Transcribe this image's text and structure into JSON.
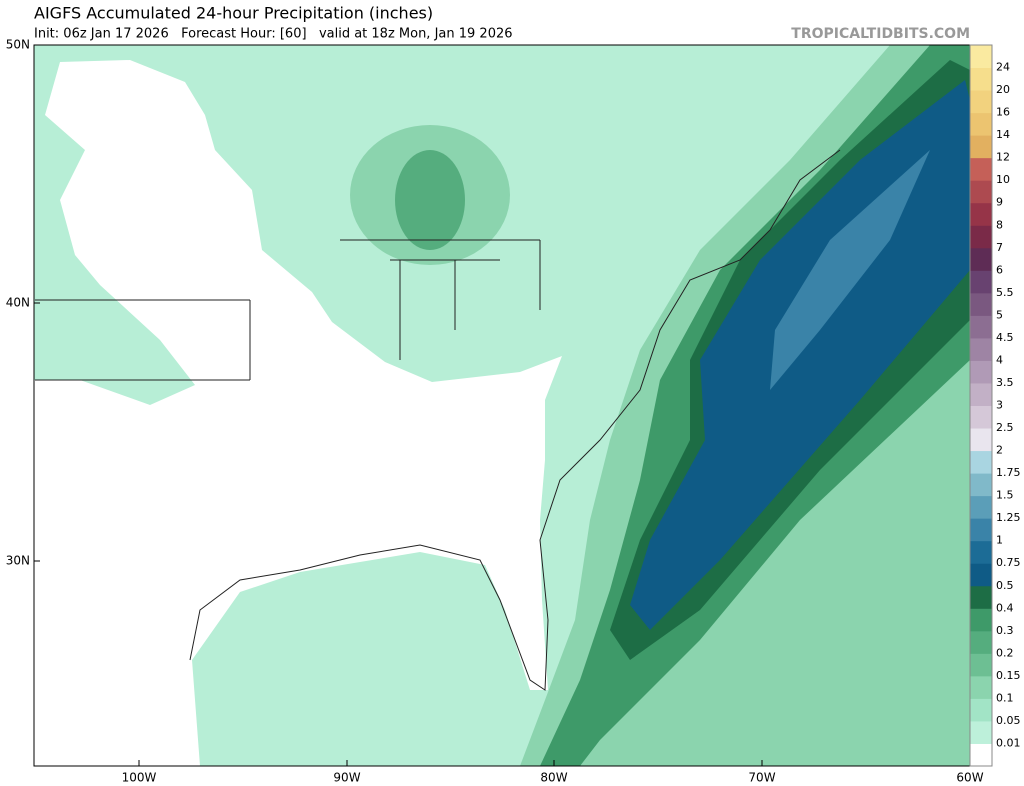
{
  "header": {
    "title": "AIGFS Accumulated 24-hour Precipitation (inches)",
    "subtitle": "Init: 06z Jan 17 2026   Forecast Hour: [60]   valid at 18z Mon, Jan 19 2026",
    "watermark": "TROPICALTIDBITS.COM"
  },
  "map": {
    "lat_labels": [
      "50N",
      "40N",
      "30N"
    ],
    "lon_labels": [
      "100W",
      "90W",
      "80W",
      "70W",
      "60W"
    ]
  },
  "colorbar": {
    "labels": [
      0.01,
      0.05,
      0.1,
      0.15,
      0.2,
      0.3,
      0.4,
      0.5,
      0.75,
      1,
      1.25,
      1.5,
      1.75,
      2,
      2.5,
      3,
      3.5,
      4,
      4.5,
      5,
      5.5,
      6,
      7,
      8,
      9,
      10,
      12,
      14,
      16,
      20,
      24
    ],
    "colors": [
      "#ffffff",
      "#bdf0da",
      "#a2e4c6",
      "#8bd4ae",
      "#6dbf93",
      "#55ad7e",
      "#3e9a69",
      "#1d6d45",
      "#0f5b86",
      "#1c6c96",
      "#3a83a8",
      "#5b9eb8",
      "#80b9c9",
      "#a9d5e1",
      "#e9e5ee",
      "#d5c8d8",
      "#c2b0c6",
      "#b09ab6",
      "#9e84a4",
      "#8c6e92",
      "#7a5880",
      "#684270",
      "#5e2c55",
      "#7a2a48",
      "#963448",
      "#ad4a50",
      "#c56058",
      "#e2b060",
      "#ecc470",
      "#f2d27e",
      "#f6de8c",
      "#faeaa0"
    ]
  }
}
